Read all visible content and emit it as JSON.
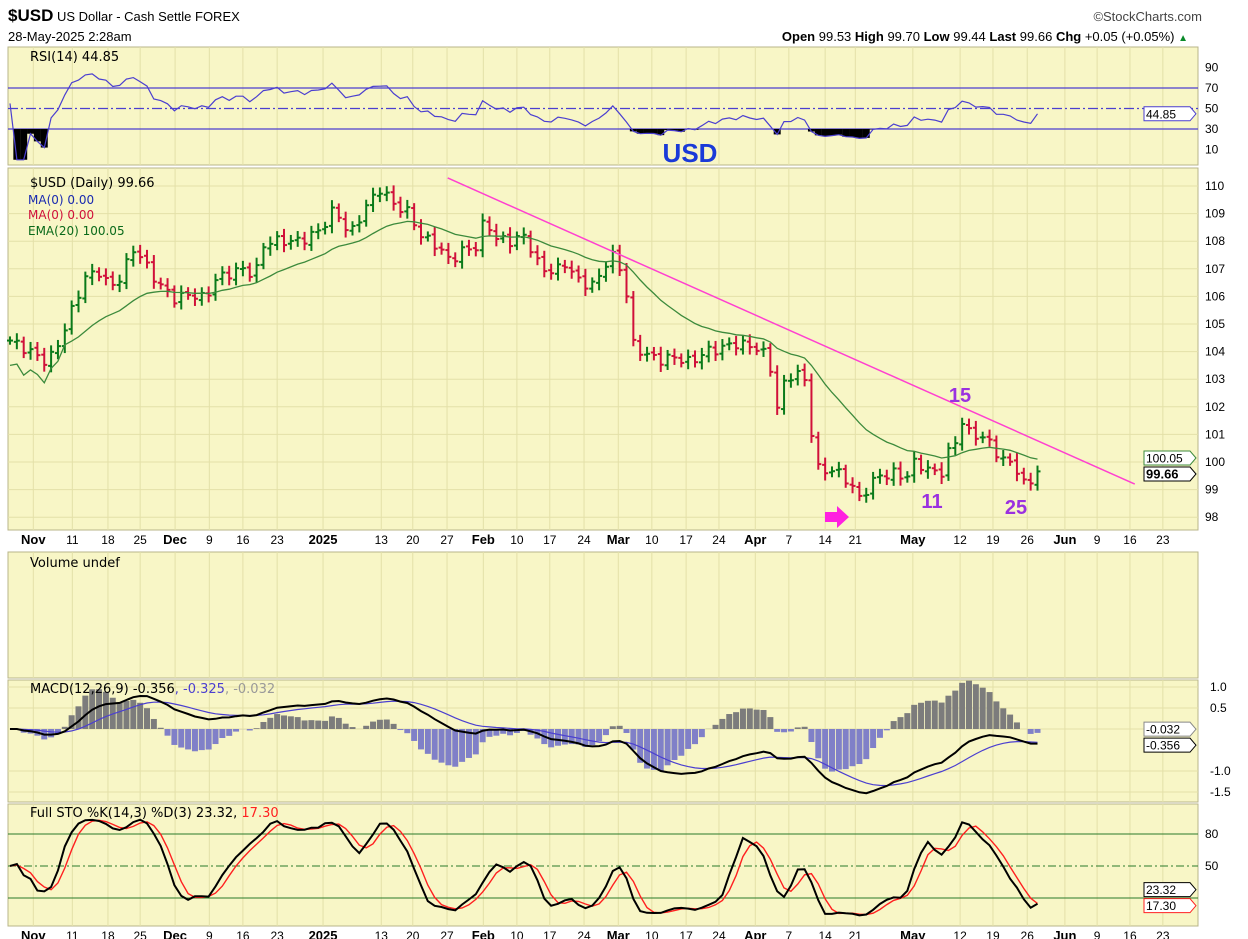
{
  "header": {
    "symbol": "$USD",
    "name": "US Dollar - Cash Settle",
    "exchange": "FOREX",
    "datetime": "28-May-2025 2:28am",
    "brand": "©StockCharts.com",
    "open_label": "Open",
    "open": "99.53",
    "high_label": "High",
    "high": "99.70",
    "low_label": "Low",
    "low": "99.44",
    "last_label": "Last",
    "last": "99.66",
    "chg_label": "Chg",
    "chg": "+0.05 (+0.05%)",
    "up_icon": "▲"
  },
  "colors": {
    "panel_bg": "#f8f6c6",
    "grid": "#e3e0a8",
    "up": "#0a7a1a",
    "down": "#d0103a",
    "ema": "#3c8a3c",
    "rsi": "#4b3fd0",
    "trend": "#ff40d0",
    "annot": "#9a30e0",
    "usd_label": "#1a3ad8",
    "macd_hist_pos": "#7c7c7c",
    "macd_hist_neg": "#8080c8",
    "sto_d": "#ff2020"
  },
  "annotations": {
    "usd": "USD",
    "n15": "15",
    "n11": "11",
    "n25": "25",
    "arrow_icon": "right-arrow"
  },
  "legends": {
    "rsi": "RSI(14) 44.85",
    "price": "$USD (Daily) 99.66",
    "ma1": "MA(0) 0.00",
    "ma2": "MA(0) 0.00",
    "ema": "EMA(20) 100.05",
    "volume": "Volume undef",
    "macd_main": "MACD(12,26,9) -0.356",
    "macd_signal": ", -0.325",
    "macd_hist": ", -0.032",
    "sto_main": "Full STO %K(14,3) %D(3) 23.32,",
    "sto_d": " 17.30"
  },
  "chart_data": {
    "type": "ohlc",
    "x_unit": "trading-day index (0 = 30-Oct-2024)",
    "price": {
      "ylim": [
        97.6,
        110.6
      ],
      "yticks": [
        98,
        99,
        100,
        101,
        102,
        103,
        104,
        105,
        106,
        107,
        108,
        109,
        110
      ],
      "last_tag": "99.66",
      "ema_tag": "100.05",
      "close_points": [
        [
          0,
          104.4
        ],
        [
          2.9,
          104.0
        ],
        [
          5.5,
          103.6
        ],
        [
          7.3,
          104.4
        ],
        [
          9.5,
          105.8
        ],
        [
          11,
          106.7
        ],
        [
          13.1,
          106.9
        ],
        [
          14.6,
          106.3
        ],
        [
          16.1,
          106.7
        ],
        [
          18.2,
          107.8
        ],
        [
          20.4,
          106.9
        ],
        [
          21.9,
          106.4
        ],
        [
          24.1,
          105.9
        ],
        [
          26.3,
          106.1
        ],
        [
          28.5,
          105.9
        ],
        [
          29.9,
          106.6
        ],
        [
          33.6,
          107.0
        ],
        [
          35.8,
          106.8
        ],
        [
          37.2,
          108.0
        ],
        [
          39.4,
          108.0
        ],
        [
          42.3,
          108.0
        ],
        [
          45.3,
          108.4
        ],
        [
          47.4,
          109.2
        ],
        [
          49.6,
          108.2
        ],
        [
          51.8,
          109.2
        ],
        [
          54,
          109.9
        ],
        [
          56.2,
          109.3
        ],
        [
          58.4,
          109.0
        ],
        [
          59.9,
          108.2
        ],
        [
          62,
          107.9
        ],
        [
          64.2,
          107.3
        ],
        [
          66.4,
          107.7
        ],
        [
          68.3,
          107.8
        ],
        [
          69.3,
          108.9
        ],
        [
          70.8,
          108.1
        ],
        [
          73,
          108.0
        ],
        [
          75.2,
          108.2
        ],
        [
          77.4,
          107.0
        ],
        [
          79.6,
          106.9
        ],
        [
          81,
          107.2
        ],
        [
          83.2,
          106.5
        ],
        [
          85.4,
          106.4
        ],
        [
          86.9,
          107.2
        ],
        [
          88.3,
          107.5
        ],
        [
          89.8,
          106.5
        ],
        [
          90.8,
          104.3
        ],
        [
          92.7,
          103.9
        ],
        [
          94.9,
          103.7
        ],
        [
          97.1,
          103.8
        ],
        [
          99.3,
          103.6
        ],
        [
          101.5,
          104.0
        ],
        [
          103.6,
          104.1
        ],
        [
          105.8,
          104.3
        ],
        [
          108,
          104.2
        ],
        [
          109.5,
          104.1
        ],
        [
          110.9,
          103.6
        ],
        [
          111.8,
          101.8
        ],
        [
          113.1,
          102.9
        ],
        [
          114.6,
          103.3
        ],
        [
          116.1,
          102.9
        ],
        [
          117.1,
          100.9
        ],
        [
          118.2,
          99.5
        ],
        [
          119.7,
          99.8
        ],
        [
          121.9,
          99.4
        ],
        [
          123.4,
          99.0
        ],
        [
          124.1,
          98.6
        ],
        [
          125.5,
          99.2
        ],
        [
          127,
          99.5
        ],
        [
          129.2,
          99.6
        ],
        [
          130.7,
          99.4
        ],
        [
          132.1,
          100.0
        ],
        [
          134.3,
          99.7
        ],
        [
          135.8,
          99.5
        ],
        [
          137.2,
          100.5
        ],
        [
          138.4,
          100.8
        ],
        [
          139,
          101.5
        ],
        [
          140.1,
          101.0
        ],
        [
          142.3,
          100.9
        ],
        [
          143.8,
          100.4
        ],
        [
          145.3,
          100.0
        ],
        [
          146.7,
          99.9
        ],
        [
          148.2,
          99.1
        ],
        [
          149.6,
          99.4
        ],
        [
          150.8,
          99.66
        ]
      ],
      "trendline": [
        [
          63.9,
          110.29
        ],
        [
          164.2,
          99.2
        ]
      ],
      "ema_period": 20
    },
    "x_ticks": [
      {
        "d": 3.4,
        "label": "Nov",
        "bold": true
      },
      {
        "d": 9.1,
        "label": "11"
      },
      {
        "d": 14.3,
        "label": "18"
      },
      {
        "d": 19,
        "label": "25"
      },
      {
        "d": 24.1,
        "label": "Dec",
        "bold": true
      },
      {
        "d": 29.1,
        "label": "9"
      },
      {
        "d": 34,
        "label": "16"
      },
      {
        "d": 39,
        "label": "23"
      },
      {
        "d": 45.7,
        "label": "2025",
        "bold": true
      },
      {
        "d": 54.2,
        "label": "13"
      },
      {
        "d": 58.8,
        "label": "20"
      },
      {
        "d": 63.8,
        "label": "27"
      },
      {
        "d": 69.1,
        "label": "Feb",
        "bold": true
      },
      {
        "d": 74,
        "label": "10"
      },
      {
        "d": 78.8,
        "label": "17"
      },
      {
        "d": 83.8,
        "label": "24"
      },
      {
        "d": 88.8,
        "label": "Mar",
        "bold": true
      },
      {
        "d": 93.7,
        "label": "10"
      },
      {
        "d": 98.7,
        "label": "17"
      },
      {
        "d": 103.5,
        "label": "24"
      },
      {
        "d": 108.8,
        "label": "Apr",
        "bold": true
      },
      {
        "d": 113.7,
        "label": "7"
      },
      {
        "d": 119,
        "label": "14"
      },
      {
        "d": 123.4,
        "label": "21"
      },
      {
        "d": 131.8,
        "label": "May",
        "bold": true
      },
      {
        "d": 138.7,
        "label": "12"
      },
      {
        "d": 143.5,
        "label": "19"
      },
      {
        "d": 148.5,
        "label": "26"
      },
      {
        "d": 154,
        "label": "Jun",
        "bold": true
      },
      {
        "d": 158.7,
        "label": "9"
      },
      {
        "d": 163.5,
        "label": "16"
      },
      {
        "d": 168.3,
        "label": "23"
      }
    ],
    "rsi": {
      "period": 14,
      "ylim": [
        0,
        100
      ],
      "yticks": [
        10,
        30,
        50,
        70,
        90
      ],
      "levels": [
        30,
        50,
        70
      ],
      "last": "44.85"
    },
    "macd": {
      "params": [
        12,
        26,
        9
      ],
      "ylim": [
        -1.7,
        1.2
      ],
      "yticks": [
        "1.0",
        "0.5",
        "-1.0",
        "-1.5"
      ],
      "last_tags": [
        "-0.032",
        "-0.356"
      ]
    },
    "sto": {
      "params": [
        14,
        3,
        3
      ],
      "ylim": [
        0,
        100
      ],
      "yticks": [
        "80",
        "50"
      ],
      "levels": [
        20,
        50,
        80
      ],
      "last_tags": [
        "23.32",
        "17.30"
      ]
    }
  }
}
